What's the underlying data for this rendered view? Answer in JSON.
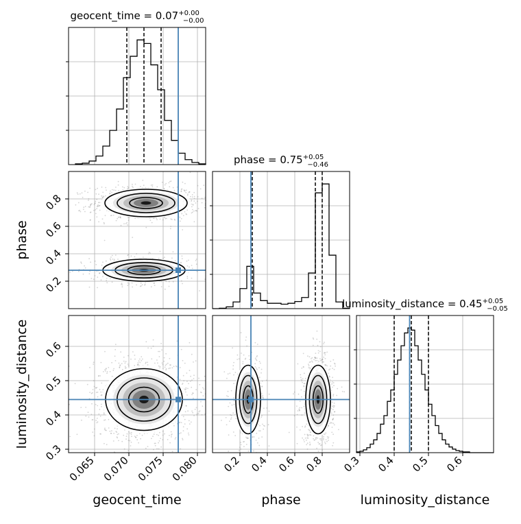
{
  "chart_data": {
    "type": "corner",
    "parameters": [
      "geocent_time",
      "phase",
      "luminosity_distance"
    ],
    "titles": {
      "geocent_time": {
        "name": "geocent_time",
        "median": "0.07",
        "plus": "+0.00",
        "minus": "−0.00"
      },
      "phase": {
        "name": "phase",
        "median": "0.75",
        "plus": "+0.05",
        "minus": "−0.46"
      },
      "luminosity_distance": {
        "name": "luminosity_distance",
        "median": "0.45",
        "plus": "+0.05",
        "minus": "−0.05"
      }
    },
    "ranges": {
      "geocent_time": [
        0.0612,
        0.0812
      ],
      "phase": [
        0.0,
        1.0
      ],
      "luminosity_distance": [
        0.29,
        0.69
      ]
    },
    "ticks": {
      "geocent_time": [
        "0.065",
        "0.070",
        "0.075",
        "0.080"
      ],
      "phase": [
        "0.2",
        "0.4",
        "0.6",
        "0.8"
      ],
      "luminosity_distance": [
        "0.3",
        "0.4",
        "0.5",
        "0.6"
      ]
    },
    "injection": {
      "geocent_time": 0.0772,
      "phase": 0.28,
      "luminosity_distance": 0.445
    },
    "quantiles": {
      "geocent_time": [
        0.0697,
        0.0722,
        0.0747
      ],
      "phase": [
        0.29,
        0.75,
        0.8
      ],
      "luminosity_distance": [
        0.4,
        0.45,
        0.5
      ]
    },
    "histograms": {
      "geocent_time": {
        "edges": [
          0.0622,
          0.0632,
          0.0642,
          0.0652,
          0.0662,
          0.0672,
          0.0682,
          0.0692,
          0.0702,
          0.0712,
          0.0722,
          0.0732,
          0.0742,
          0.0752,
          0.0762,
          0.0772,
          0.0782,
          0.0792,
          0.0802,
          0.0812
        ],
        "counts": [
          1,
          2,
          5,
          12,
          26,
          48,
          78,
          122,
          152,
          175,
          170,
          140,
          105,
          62,
          34,
          16,
          7,
          3,
          1
        ]
      },
      "phase": {
        "edges": [
          0.0,
          0.05,
          0.1,
          0.15,
          0.2,
          0.25,
          0.3,
          0.35,
          0.4,
          0.45,
          0.5,
          0.55,
          0.6,
          0.65,
          0.7,
          0.75,
          0.8,
          0.85,
          0.9,
          0.95,
          1.0
        ],
        "counts": [
          0,
          1,
          4,
          15,
          45,
          95,
          35,
          18,
          12,
          12,
          10,
          12,
          16,
          25,
          80,
          260,
          280,
          120,
          15,
          1
        ]
      },
      "luminosity_distance": {
        "edges": [
          0.29,
          0.3,
          0.31,
          0.32,
          0.33,
          0.34,
          0.35,
          0.36,
          0.37,
          0.38,
          0.39,
          0.4,
          0.41,
          0.42,
          0.43,
          0.44,
          0.45,
          0.46,
          0.47,
          0.48,
          0.49,
          0.5,
          0.51,
          0.52,
          0.53,
          0.54,
          0.55,
          0.56,
          0.57,
          0.58,
          0.59,
          0.6,
          0.61,
          0.62,
          0.63,
          0.64,
          0.65,
          0.66,
          0.67,
          0.68,
          0.69
        ],
        "counts": [
          1,
          2,
          4,
          7,
          12,
          18,
          27,
          40,
          52,
          72,
          88,
          110,
          130,
          150,
          168,
          175,
          172,
          150,
          130,
          110,
          88,
          68,
          52,
          38,
          27,
          18,
          12,
          8,
          5,
          3,
          2,
          1,
          1,
          0,
          0,
          0,
          0,
          0,
          0,
          0
        ]
      }
    },
    "scatter_pairs": [
      {
        "x": "geocent_time",
        "y": "phase",
        "modes": [
          {
            "cx": 0.0725,
            "cy": 0.77,
            "sx": 0.003,
            "sy": 0.05,
            "weight": 0.65
          },
          {
            "cx": 0.0722,
            "cy": 0.28,
            "sx": 0.003,
            "sy": 0.04,
            "weight": 0.35
          }
        ]
      },
      {
        "x": "geocent_time",
        "y": "luminosity_distance",
        "modes": [
          {
            "cx": 0.0722,
            "cy": 0.445,
            "sx": 0.0028,
            "sy": 0.045,
            "weight": 1.0
          }
        ]
      },
      {
        "x": "phase",
        "y": "luminosity_distance",
        "modes": [
          {
            "cx": 0.26,
            "cy": 0.445,
            "sx": 0.045,
            "sy": 0.05,
            "weight": 0.35
          },
          {
            "cx": 0.77,
            "cy": 0.445,
            "sx": 0.045,
            "sy": 0.05,
            "weight": 0.65
          }
        ]
      }
    ],
    "grid": true,
    "colors": {
      "line": "#000000",
      "injection": "#4682b4",
      "grid": "#b0b0b0",
      "points": "#808080"
    }
  }
}
